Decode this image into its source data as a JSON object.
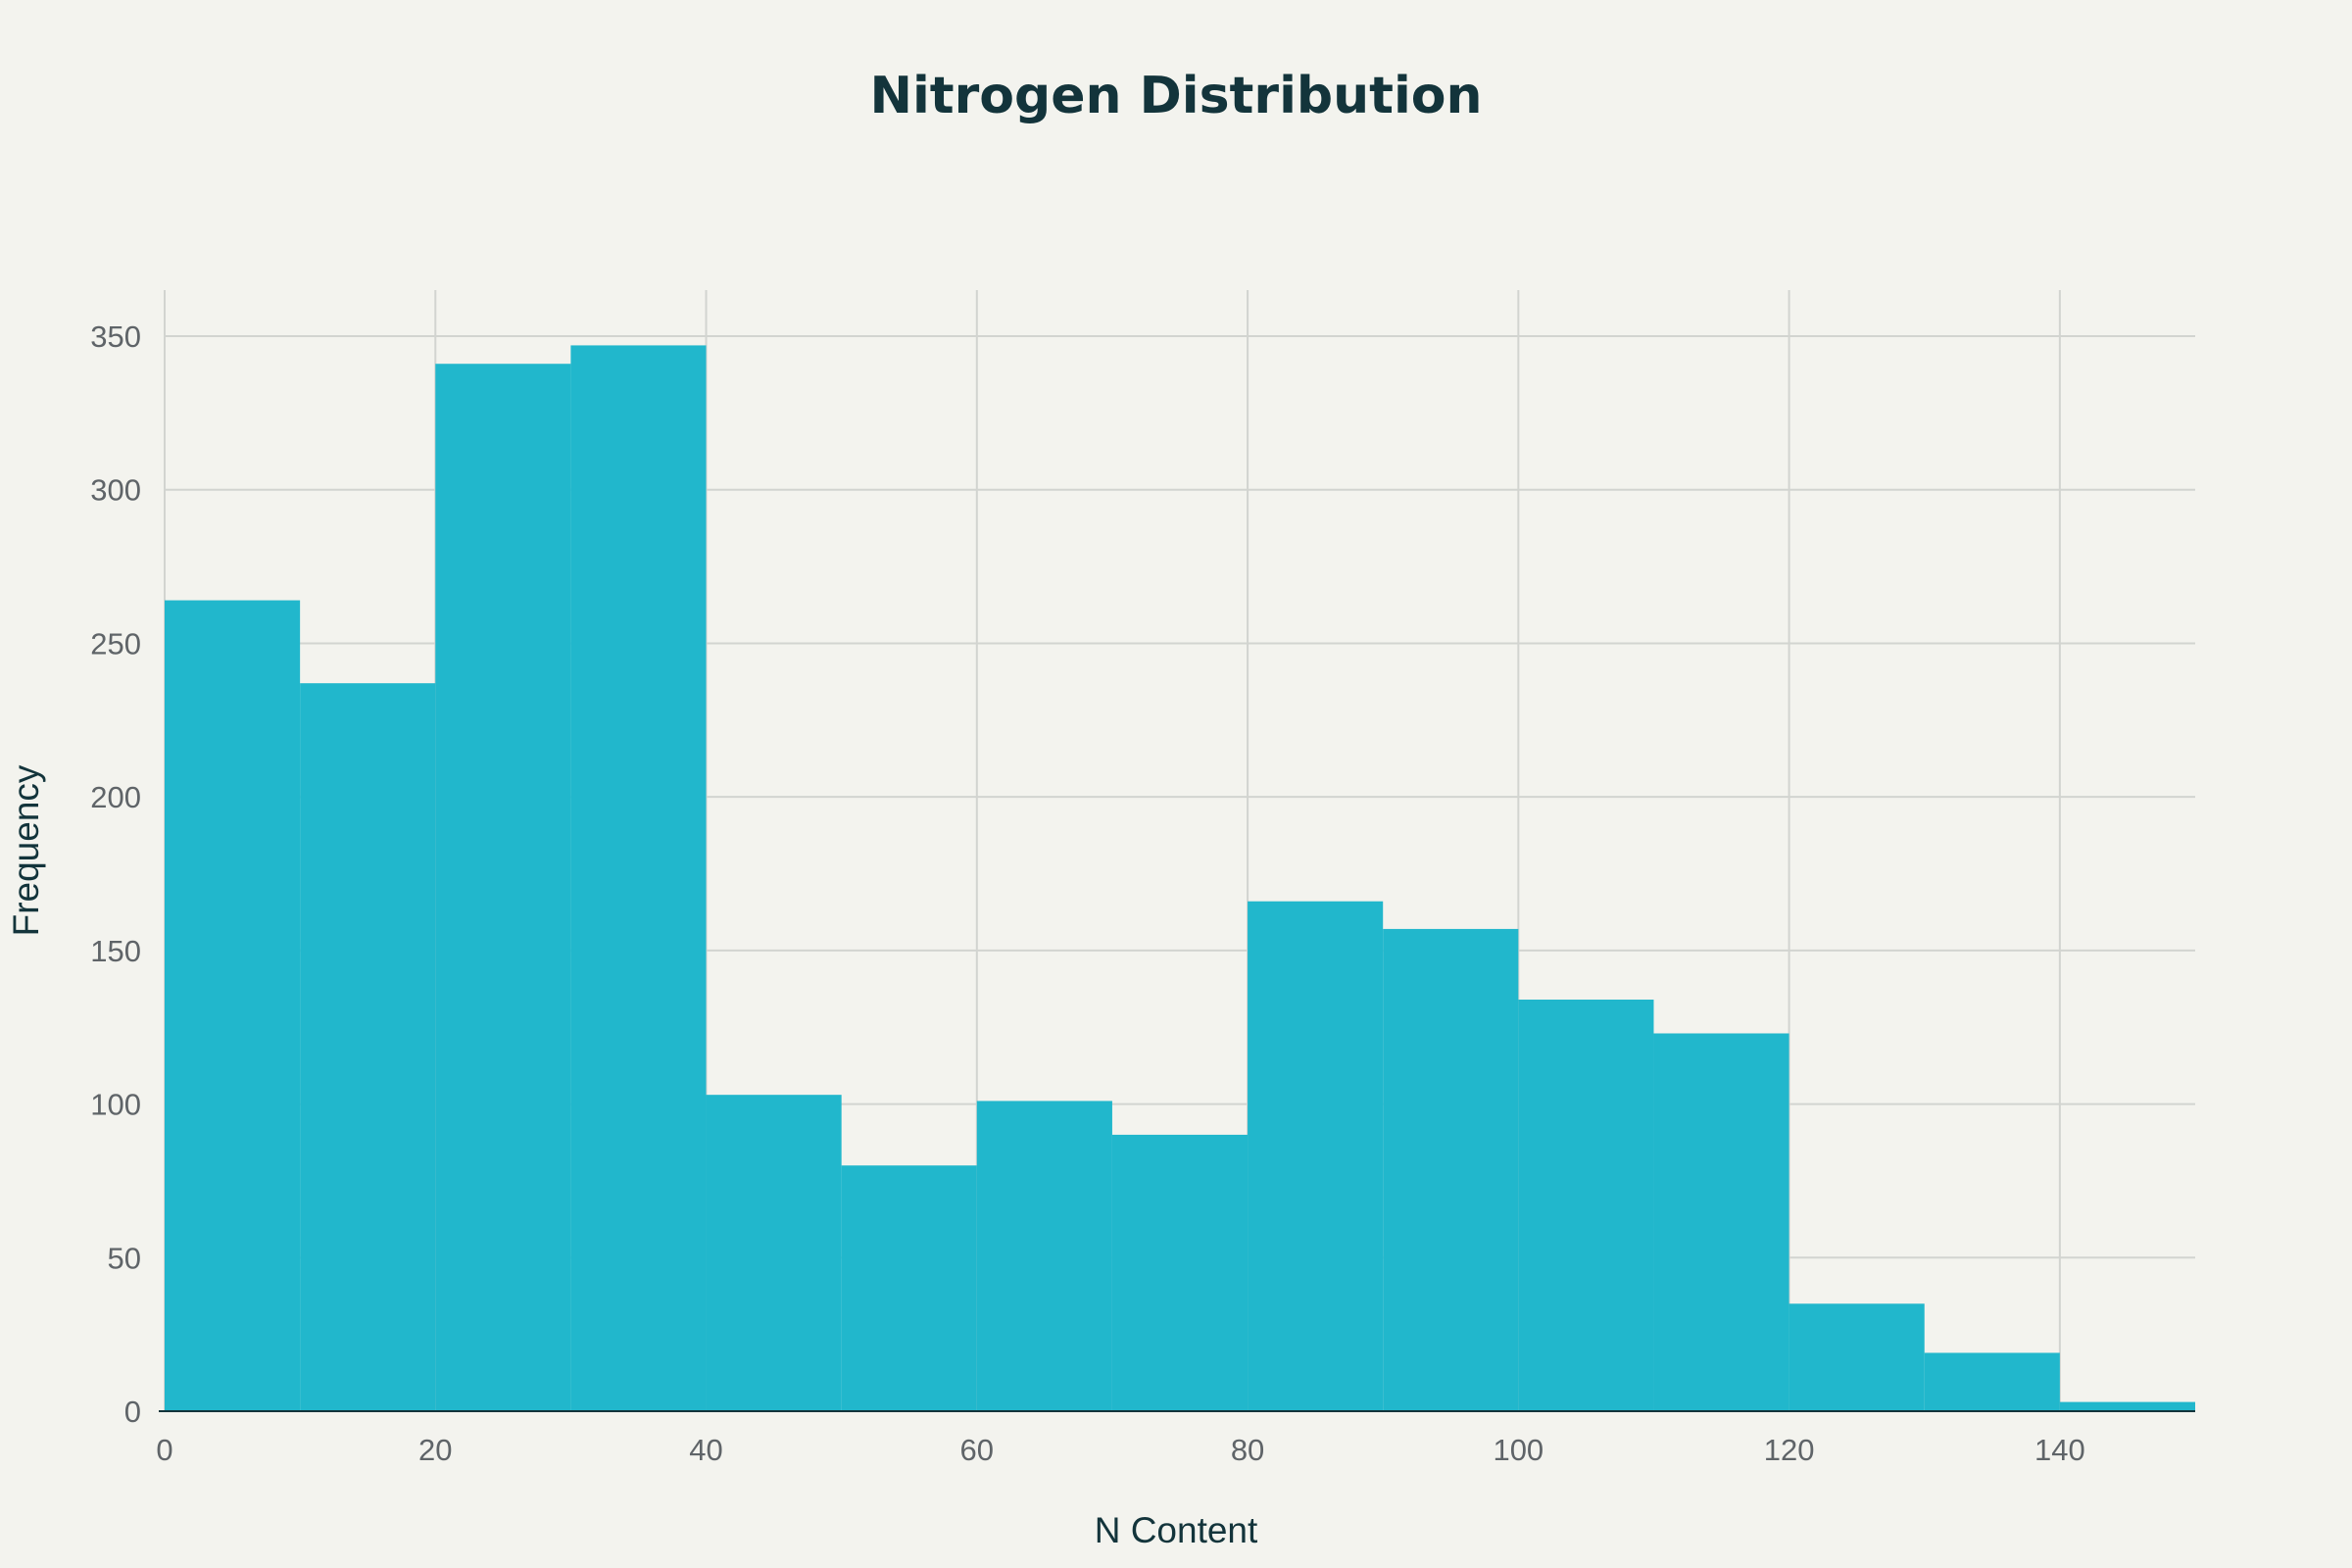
{
  "chart_data": {
    "type": "bar",
    "title": "Nitrogen Distribution",
    "xlabel": "N Content",
    "ylabel": "Frequency",
    "bins": [
      {
        "start": 0,
        "end": 10,
        "count": 264
      },
      {
        "start": 10,
        "end": 20,
        "count": 237
      },
      {
        "start": 20,
        "end": 30,
        "count": 341
      },
      {
        "start": 30,
        "end": 40,
        "count": 347
      },
      {
        "start": 40,
        "end": 50,
        "count": 103
      },
      {
        "start": 50,
        "end": 60,
        "count": 80
      },
      {
        "start": 60,
        "end": 70,
        "count": 101
      },
      {
        "start": 70,
        "end": 80,
        "count": 90
      },
      {
        "start": 80,
        "end": 90,
        "count": 166
      },
      {
        "start": 90,
        "end": 100,
        "count": 157
      },
      {
        "start": 100,
        "end": 110,
        "count": 134
      },
      {
        "start": 110,
        "end": 120,
        "count": 123
      },
      {
        "start": 120,
        "end": 130,
        "count": 35
      },
      {
        "start": 130,
        "end": 140,
        "count": 19
      },
      {
        "start": 140,
        "end": 150,
        "count": 3
      }
    ],
    "xlim": [
      0,
      150
    ],
    "ylim": [
      0,
      365
    ],
    "x_ticks": [
      0,
      20,
      40,
      60,
      80,
      100,
      120,
      140
    ],
    "y_ticks": [
      0,
      50,
      100,
      150,
      200,
      250,
      300,
      350
    ],
    "grid": true,
    "colors": {
      "bar": "#21b7cc",
      "background": "#f3f3ee",
      "grid": "#d2d4d0",
      "title": "#13343b",
      "tick": "#5f6468"
    }
  }
}
